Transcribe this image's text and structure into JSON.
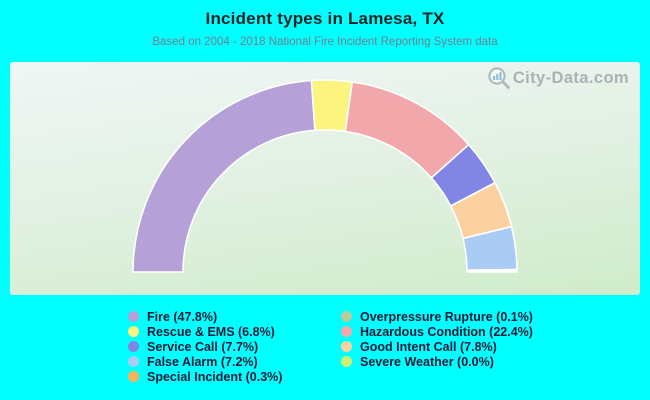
{
  "colors": {
    "page_bg": "#00ffff",
    "title_text": "#242424",
    "subtitle_text": "#708090",
    "legend_text": "#1b1b35",
    "watermark_text": "#a3abb1"
  },
  "header": {
    "title": "Incident types in Lamesa, TX",
    "subtitle": "Based on 2004 - 2018 National Fire Incident Reporting System data"
  },
  "watermark": {
    "text": "City-Data.com"
  },
  "chart_data": {
    "type": "half-donut",
    "title": "Incident types in Lamesa, TX",
    "unit": "percent",
    "legend_position": "bottom",
    "segments": [
      {
        "label": "Fire",
        "value": 47.8,
        "color": "#b6a0d8",
        "legend_label": "Fire (47.8%)"
      },
      {
        "label": "Rescue & EMS",
        "value": 6.8,
        "color": "#fbf47e",
        "legend_label": "Rescue & EMS (6.8%)"
      },
      {
        "label": "Service Call",
        "value": 7.7,
        "color": "#8186e4",
        "legend_label": "Service Call (7.7%)"
      },
      {
        "label": "False Alarm",
        "value": 7.2,
        "color": "#aaccf4",
        "legend_label": "False Alarm (7.2%)"
      },
      {
        "label": "Special Incident",
        "value": 0.3,
        "color": "#f8b258",
        "legend_label": "Special Incident (0.3%)"
      },
      {
        "label": "Overpressure Rupture",
        "value": 0.1,
        "color": "#b7cd9d",
        "legend_label": "Overpressure Rupture (0.1%)"
      },
      {
        "label": "Hazardous Condition",
        "value": 22.4,
        "color": "#f2a7ab",
        "legend_label": "Hazardous Condition (22.4%)"
      },
      {
        "label": "Good Intent Call",
        "value": 7.8,
        "color": "#fcd1a2",
        "legend_label": "Good Intent Call (7.8%)"
      },
      {
        "label": "Severe Weather",
        "value": 0.0,
        "color": "#ccf170",
        "legend_label": "Severe Weather (0.0%)"
      }
    ],
    "arc_order": [
      0,
      1,
      6,
      2,
      7,
      3,
      4,
      5,
      8
    ],
    "legend_columns": [
      [
        0,
        1,
        2,
        3,
        4
      ],
      [
        5,
        6,
        7,
        8
      ]
    ]
  }
}
